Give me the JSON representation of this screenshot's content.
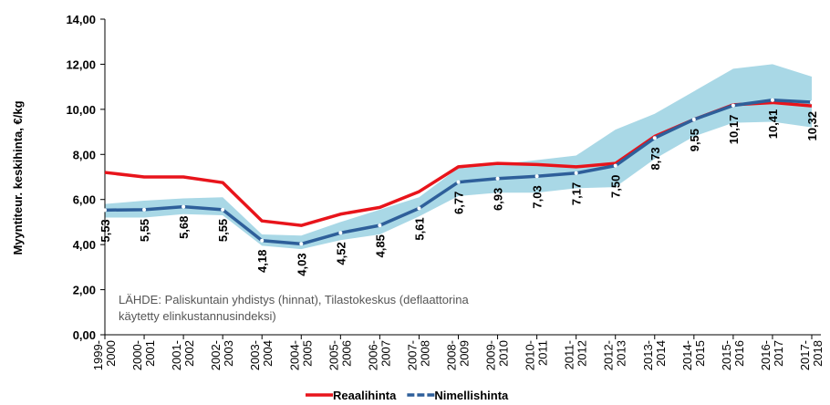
{
  "chart_data": {
    "type": "line",
    "y_label": "Myyntiteur. keskihinta, €/kg",
    "annotation": [
      "LÄHDE: Paliskuntain yhdistys (hinnat), Tilastokeskus (deflaattorina",
      "käytetty elinkustannusindeksi)"
    ],
    "categories": [
      "1999-2000",
      "2000-2001",
      "2001-2002",
      "2002-2003",
      "2003-2004",
      "2004-2005",
      "2005-2006",
      "2006-2007",
      "2007-2008",
      "2008-2009",
      "2009-2010",
      "2010-2011",
      "2011-2012",
      "2012-2013",
      "2013-2014",
      "2014-2015",
      "2015-2016",
      "2016-2017",
      "2017-2018"
    ],
    "band": {
      "color": "#a9d8e6",
      "upper": [
        5.8,
        5.95,
        6.05,
        6.1,
        4.45,
        4.4,
        5.0,
        5.55,
        6.1,
        7.4,
        7.55,
        7.75,
        7.95,
        9.1,
        9.8,
        10.8,
        11.8,
        12.0,
        11.45
      ],
      "lower": [
        5.2,
        5.2,
        5.35,
        5.3,
        3.95,
        3.8,
        4.2,
        4.45,
        5.25,
        6.15,
        6.3,
        6.3,
        6.5,
        6.55,
        7.8,
        8.8,
        9.4,
        9.45,
        9.2
      ]
    },
    "series": [
      {
        "name": "Reaalihinta",
        "color": "#e8141b",
        "values": [
          7.2,
          7.0,
          7.0,
          6.75,
          5.05,
          4.85,
          5.35,
          5.65,
          6.35,
          7.45,
          7.6,
          7.55,
          7.45,
          7.6,
          8.8,
          9.55,
          10.2,
          10.3,
          10.15
        ]
      },
      {
        "name": "Nimellishinta",
        "color": "#2e5f9a",
        "values": [
          5.53,
          5.55,
          5.68,
          5.55,
          4.18,
          4.03,
          4.52,
          4.85,
          5.61,
          6.77,
          6.93,
          7.03,
          7.17,
          7.5,
          8.73,
          9.55,
          10.17,
          10.41,
          10.32
        ],
        "value_labels": [
          "5,53",
          "5,55",
          "5,68",
          "5,55",
          "4,18",
          "4,03",
          "4,52",
          "4,85",
          "5,61",
          "6,77",
          "6,93",
          "7,03",
          "7,17",
          "7,50",
          "8,73",
          "9,55",
          "10,17",
          "10,41",
          "10,32"
        ]
      }
    ],
    "ylim": [
      0,
      14
    ],
    "yticks": [
      {
        "value": 0,
        "label": "0,00"
      },
      {
        "value": 2,
        "label": "2,00"
      },
      {
        "value": 4,
        "label": "4,00"
      },
      {
        "value": 6,
        "label": "6,00"
      },
      {
        "value": 8,
        "label": "8,00"
      },
      {
        "value": 10,
        "label": "10,00"
      },
      {
        "value": 12,
        "label": "12,00"
      },
      {
        "value": 14,
        "label": "14,00"
      }
    ],
    "legend": "bottom"
  }
}
